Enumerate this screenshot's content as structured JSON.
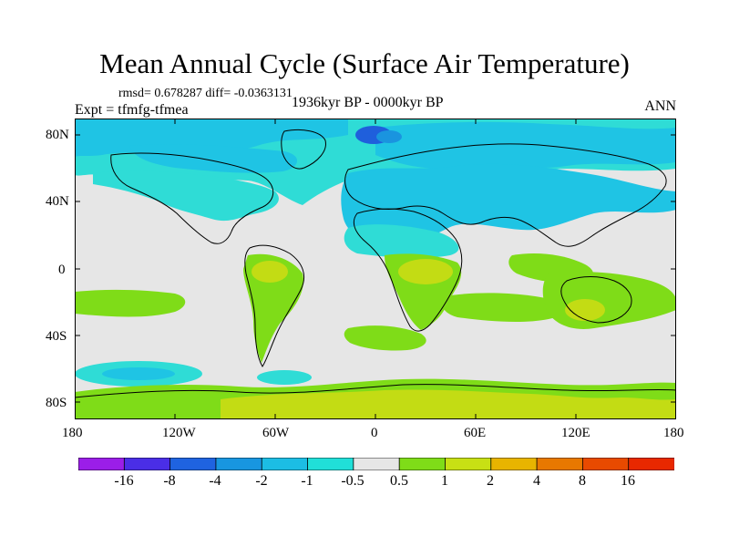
{
  "title": "Mean Annual Cycle (Surface Air Temperature)",
  "stats": "rmsd= 0.678287 diff= -0.0363131",
  "experiment": "Expt = tfmfg-tfmea",
  "period": "1936kyr BP - 0000kyr BP",
  "season": "ANN",
  "lat_ticks": [
    "80N",
    "40N",
    "0",
    "40S",
    "80S"
  ],
  "lon_ticks": [
    "180",
    "120W",
    "60W",
    "0",
    "60E",
    "120E",
    "180"
  ],
  "colorbar": {
    "labels": [
      "-16",
      "-8",
      "-4",
      "-2",
      "-1",
      "-0.5",
      "0.5",
      "1",
      "2",
      "4",
      "8",
      "16"
    ],
    "colors": [
      "#9b1ee8",
      "#4a2ee6",
      "#1f63e0",
      "#1896e0",
      "#1cbde4",
      "#20dfd8",
      "#e6e6e6",
      "#7fdc18",
      "#c8e014",
      "#e8b400",
      "#e87800",
      "#e84a00",
      "#e82800"
    ]
  },
  "map_colors": {
    "neutral": "#e6e6e6",
    "cyan_light": "#2fdcd6",
    "cyan": "#1fc4e4",
    "blue_mid": "#1a94df",
    "blue_deep": "#1f5fdc",
    "green": "#7fdc18",
    "yellow_green": "#c3dc14"
  }
}
